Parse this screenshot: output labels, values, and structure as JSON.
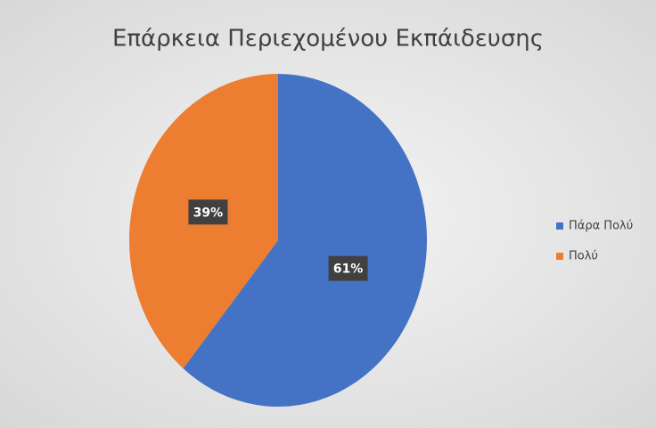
{
  "chart_data": {
    "type": "pie",
    "title": "Επάρκεια Περιεχομένου Εκπάιδευσης",
    "categories": [
      "Πάρα Πολύ",
      "Πολύ"
    ],
    "values": [
      61,
      39
    ],
    "value_labels": [
      "61%",
      "39%"
    ],
    "colors": [
      "#4472c4",
      "#ed7d31"
    ],
    "legend": "right"
  }
}
